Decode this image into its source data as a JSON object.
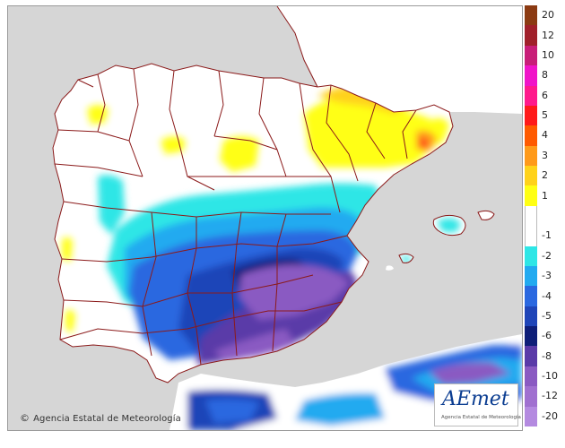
{
  "map": {
    "copyright": "Agencia Estatal de Meteorología",
    "copyright_symbol": "©",
    "logo": {
      "brand": "AEmet",
      "subtitle": "Agencia Estatal de Meteorología"
    }
  },
  "legend": {
    "items": [
      {
        "label": "20",
        "color": "#8b3a12"
      },
      {
        "label": "12",
        "color": "#a0202a"
      },
      {
        "label": "10",
        "color": "#c81e78"
      },
      {
        "label": "8",
        "color": "#f014c8"
      },
      {
        "label": "6",
        "color": "#ff1a8c"
      },
      {
        "label": "5",
        "color": "#ff1a1a"
      },
      {
        "label": "4",
        "color": "#ff5a00"
      },
      {
        "label": "3",
        "color": "#ff9a1a"
      },
      {
        "label": "2",
        "color": "#ffd21a"
      },
      {
        "label": "1",
        "color": "#ffff14"
      },
      {
        "label": "",
        "color": "#ffffff"
      },
      {
        "label": "-1",
        "color": "#ffffff"
      },
      {
        "label": "-2",
        "color": "#2ee6e6"
      },
      {
        "label": "-3",
        "color": "#22aaf0"
      },
      {
        "label": "-4",
        "color": "#2a68e0"
      },
      {
        "label": "-5",
        "color": "#1f45b8"
      },
      {
        "label": "-6",
        "color": "#0e1e78"
      },
      {
        "label": "-8",
        "color": "#5a3aa8"
      },
      {
        "label": "-10",
        "color": "#8a5ac2"
      },
      {
        "label": "-12",
        "color": "#a070d0"
      },
      {
        "label": "-20",
        "color": "#b48ae0"
      }
    ]
  }
}
